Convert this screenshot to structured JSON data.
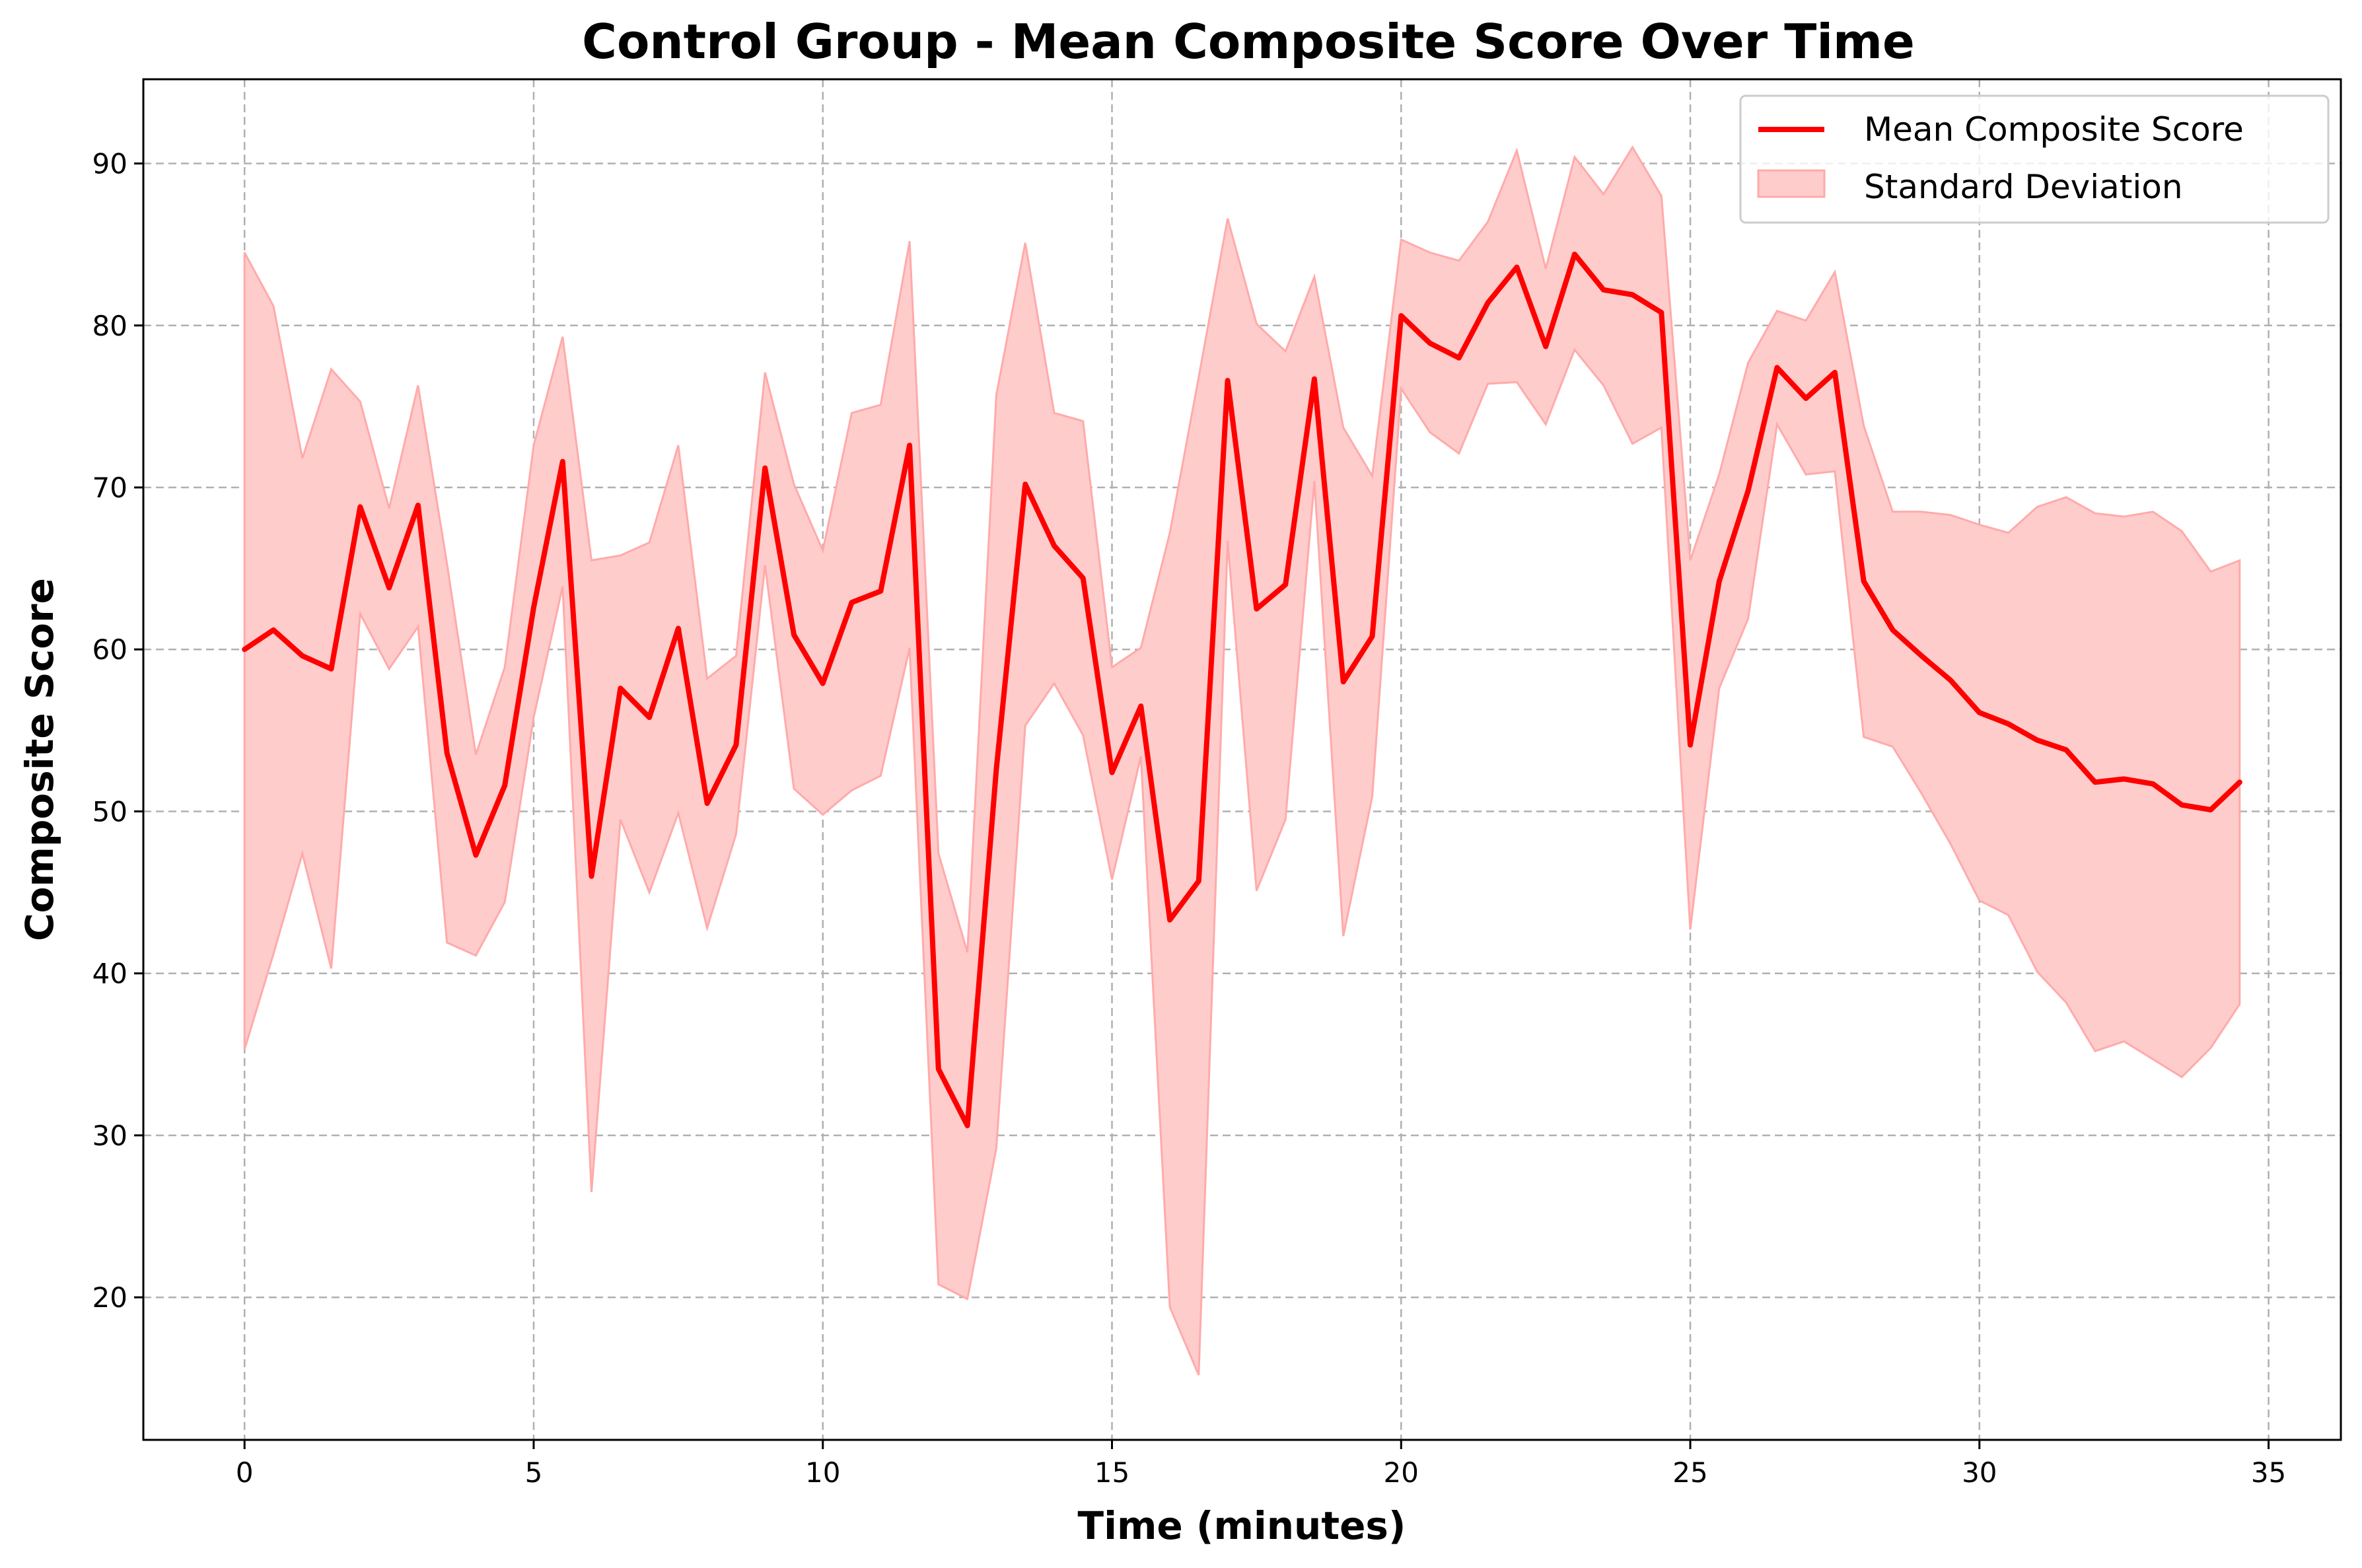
{
  "chart_data": {
    "type": "line",
    "title": "Control Group - Mean Composite Score Over Time",
    "xlabel": "Time (minutes)",
    "ylabel": "Composite Score",
    "xlim": [
      -1.75,
      36.25
    ],
    "ylim": [
      11.2,
      95.2
    ],
    "xticks": [
      0,
      5,
      10,
      15,
      20,
      25,
      30,
      35
    ],
    "yticks": [
      20,
      30,
      40,
      50,
      60,
      70,
      80,
      90
    ],
    "grid": true,
    "legend_position": "upper right",
    "colors": {
      "line": "#ff0000",
      "band": "#ffcccc",
      "band_edge": "#ffaaaa"
    },
    "x": [
      0,
      0.5,
      1,
      1.5,
      2,
      2.5,
      3,
      3.5,
      4,
      4.5,
      5,
      5.5,
      6,
      6.5,
      7,
      7.5,
      8,
      8.5,
      9,
      9.5,
      10,
      10.5,
      11,
      11.5,
      12,
      12.5,
      13,
      13.5,
      14,
      14.5,
      15,
      15.5,
      16,
      16.5,
      17,
      17.5,
      18,
      18.5,
      19,
      19.5,
      20,
      20.5,
      21,
      21.5,
      22,
      22.5,
      23,
      23.5,
      24,
      24.5,
      25,
      25.5,
      26,
      26.5,
      27,
      27.5,
      28,
      28.5,
      29,
      29.5,
      30,
      30.5,
      31,
      31.5,
      32,
      32.5,
      33,
      33.5,
      34,
      34.5
    ],
    "series": [
      {
        "name": "Mean Composite Score",
        "values": [
          60.0,
          61.2,
          59.6,
          58.8,
          68.8,
          63.8,
          68.9,
          53.6,
          47.3,
          51.6,
          62.6,
          71.6,
          46.0,
          57.6,
          55.8,
          61.3,
          50.5,
          54.1,
          71.2,
          60.9,
          57.9,
          62.9,
          63.6,
          72.6,
          34.1,
          30.6,
          52.6,
          70.2,
          66.4,
          64.4,
          52.4,
          56.5,
          43.3,
          45.7,
          76.6,
          62.5,
          64.0,
          76.7,
          58.0,
          60.8,
          80.6,
          78.9,
          78.0,
          81.4,
          83.6,
          78.7,
          84.4,
          82.2,
          81.9,
          80.8,
          54.1,
          64.2,
          69.8,
          77.4,
          75.5,
          77.1,
          64.2,
          61.2,
          59.6,
          58.1,
          56.1,
          55.4,
          54.4,
          53.8,
          51.8,
          52.0,
          51.7,
          50.4,
          50.1,
          51.8
        ]
      },
      {
        "name": "Standard Deviation",
        "lower": [
          35.3,
          41.2,
          47.4,
          40.3,
          62.2,
          58.8,
          61.4,
          41.9,
          41.1,
          44.4,
          55.8,
          63.9,
          26.5,
          49.5,
          45.0,
          49.9,
          42.8,
          48.6,
          65.2,
          51.4,
          49.8,
          51.3,
          52.2,
          60.1,
          20.8,
          19.9,
          29.2,
          55.3,
          57.9,
          54.7,
          45.8,
          53.4,
          19.4,
          15.2,
          66.7,
          45.1,
          49.5,
          70.4,
          42.3,
          50.9,
          76.1,
          73.4,
          72.1,
          76.4,
          76.5,
          73.9,
          78.5,
          76.3,
          72.7,
          73.7,
          42.7,
          57.6,
          61.9,
          73.9,
          70.8,
          71.0,
          54.6,
          54.0,
          51.1,
          48.0,
          44.5,
          43.6,
          40.1,
          38.2,
          35.2,
          35.8,
          34.7,
          33.6,
          35.4,
          38.1
        ],
        "upper": [
          84.5,
          81.2,
          71.8,
          77.3,
          75.3,
          68.7,
          76.3,
          65.3,
          53.5,
          58.9,
          72.6,
          79.3,
          65.5,
          65.8,
          66.6,
          72.6,
          58.2,
          59.6,
          77.1,
          70.2,
          66.1,
          74.6,
          75.1,
          85.2,
          47.4,
          41.3,
          75.7,
          85.1,
          74.6,
          74.1,
          58.9,
          60.1,
          67.2,
          76.8,
          86.6,
          80.1,
          78.4,
          83.0,
          73.7,
          70.7,
          85.3,
          84.5,
          84.0,
          86.4,
          90.8,
          83.5,
          90.4,
          88.1,
          91.0,
          88.0,
          65.5,
          70.8,
          77.7,
          80.9,
          80.3,
          83.3,
          73.8,
          68.5,
          68.5,
          68.3,
          67.7,
          67.2,
          68.8,
          69.4,
          68.4,
          68.2,
          68.5,
          67.3,
          64.8,
          65.5
        ]
      }
    ]
  }
}
